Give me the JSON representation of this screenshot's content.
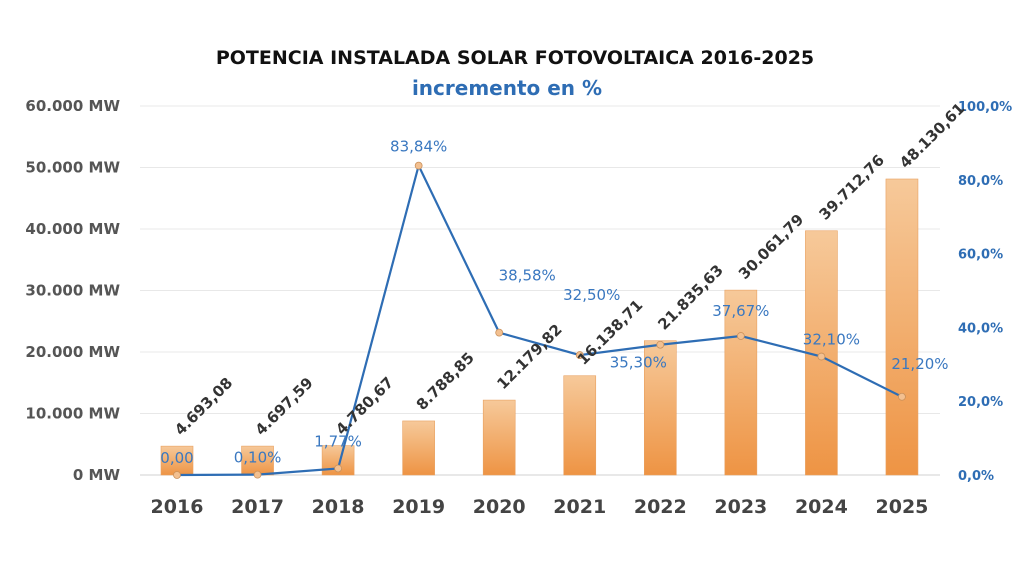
{
  "chart_data": {
    "type": "bar+line",
    "title": "POTENCIA INSTALADA SOLAR FOTOVOLTAICA 2016-2025",
    "subtitle": "incremento en %",
    "categories": [
      "2016",
      "2017",
      "2018",
      "2019",
      "2020",
      "2021",
      "2022",
      "2023",
      "2024",
      "2025"
    ],
    "bar_series": {
      "values": [
        4693.08,
        4697.59,
        4780.67,
        8788.85,
        12179.82,
        16138.71,
        21835.63,
        30061.79,
        39712.76,
        48130.61
      ],
      "labels": [
        "4.693,08",
        "4.697,59",
        "4.780,67",
        "8.788,85",
        "12.179,82",
        "16.138,71",
        "21.835,63",
        "30.061,79",
        "39.712,76",
        "48.130,61"
      ],
      "color": "#f0a868"
    },
    "line_series": {
      "values": [
        0.0,
        0.1,
        1.77,
        83.84,
        38.58,
        32.5,
        35.3,
        37.67,
        32.1,
        21.2
      ],
      "labels": [
        "0,00",
        "0,10%",
        "1,77%",
        "83,84%",
        "38,58%",
        "32,50%",
        "35,30%",
        "37,67%",
        "32,10%",
        "21,20%"
      ],
      "color": "#2e6db4"
    },
    "y_left": {
      "range": [
        0,
        60000
      ],
      "ticks": [
        "0 MW",
        "10.000 MW",
        "20.000 MW",
        "30.000 MW",
        "40.000 MW",
        "50.000 MW",
        "60.000 MW"
      ]
    },
    "y_right": {
      "range": [
        0,
        100
      ],
      "ticks": [
        "0,0%",
        "20,0%",
        "40,0%",
        "60,0%",
        "80,0%",
        "100,0%"
      ]
    },
    "grid": true,
    "legend": "none"
  }
}
